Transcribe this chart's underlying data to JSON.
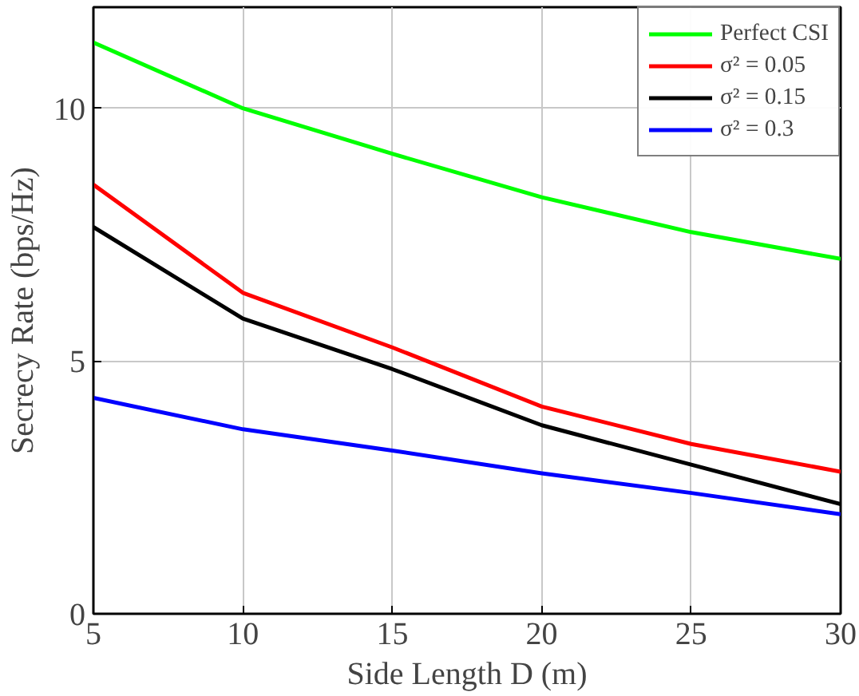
{
  "chart_data": {
    "type": "line",
    "xlabel": "Side Length D (m)",
    "ylabel": "Secrecy Rate (bps/Hz)",
    "x": [
      5,
      10,
      15,
      20,
      25,
      30
    ],
    "series": [
      {
        "name": "Perfect CSI",
        "color": "#00ff00",
        "values": [
          11.3,
          10.0,
          9.1,
          8.24,
          7.55,
          7.02
        ]
      },
      {
        "name": "σ² = 0.05",
        "color": "#ff0000",
        "values": [
          8.49,
          6.35,
          5.27,
          4.1,
          3.36,
          2.81
        ]
      },
      {
        "name": "σ² = 0.15",
        "color": "#000000",
        "values": [
          7.65,
          5.84,
          4.84,
          3.73,
          2.95,
          2.17
        ]
      },
      {
        "name": "σ² = 0.3",
        "color": "#0000ff",
        "values": [
          4.27,
          3.65,
          3.23,
          2.78,
          2.39,
          1.97
        ]
      }
    ],
    "xlim": [
      5,
      30
    ],
    "ylim": [
      0,
      12
    ],
    "xticks": [
      5,
      10,
      15,
      20,
      25,
      30
    ],
    "yticks": [
      0,
      5,
      10
    ],
    "grid": true,
    "legend": "top right",
    "line_style": "solid",
    "marker": "none"
  }
}
